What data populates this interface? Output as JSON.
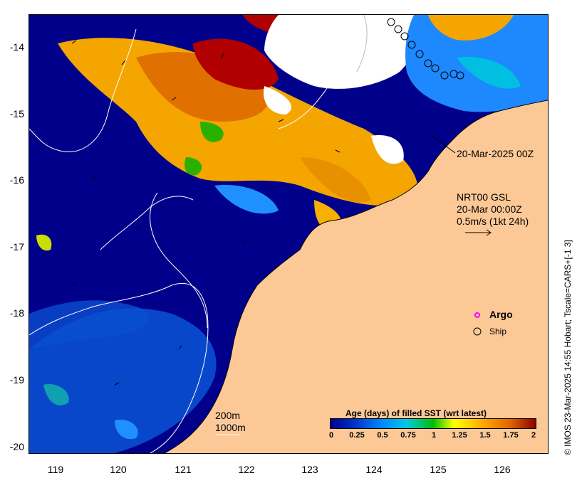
{
  "map": {
    "y_ticks": [
      "-14",
      "-15",
      "-16",
      "-17",
      "-18",
      "-19",
      "-20"
    ],
    "x_ticks": [
      "119",
      "120",
      "121",
      "122",
      "123",
      "124",
      "125",
      "126"
    ],
    "credit": "© IMOS 23-Mar-2025 14:55 Hobart; Tscale=CARS+[-1 3]",
    "date_label": "20-Mar-2025 00Z",
    "vector_title_1": "NRT00 GSL",
    "vector_title_2": "20-Mar 00:00Z",
    "vector_scale": "0.5m/s (1kt 24h)",
    "legend_argo": "Argo",
    "legend_ship": "Ship",
    "contour_200": "200m",
    "contour_1000": "1000m",
    "colorbar_title": "Age (days) of filled SST (wrt latest)",
    "colorbar_ticks": [
      "0",
      "0.25",
      "0.5",
      "0.75",
      "1",
      "1.25",
      "1.5",
      "1.75",
      "2"
    ],
    "colors": {
      "land": "#fcc896",
      "ocean_age0": "#00008b",
      "argo": "#ff00ff"
    },
    "lon_range": [
      118.6,
      126.7
    ],
    "lat_range": [
      -20.1,
      -13.5
    ]
  }
}
